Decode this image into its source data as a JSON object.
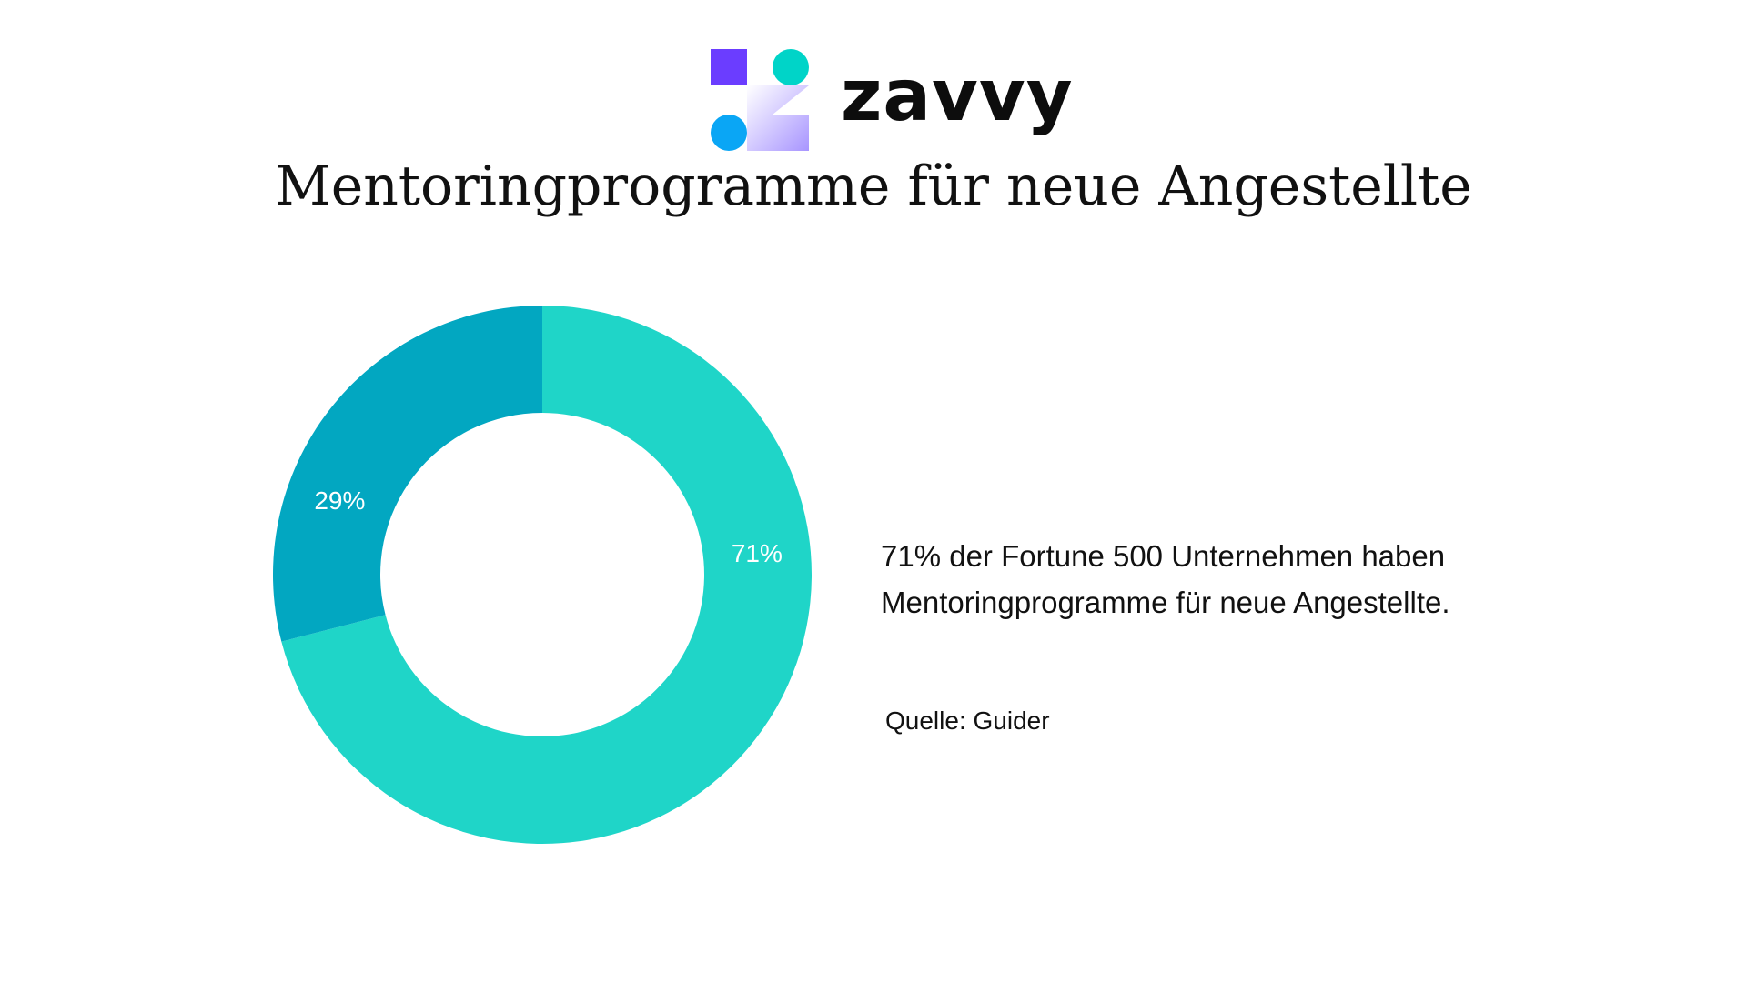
{
  "brand": {
    "name": "zavvy",
    "colors": {
      "purple": "#6b3dff",
      "teal": "#00d4c8",
      "blue": "#0aa6f5",
      "lavender": "#b7a4ff"
    }
  },
  "page": {
    "title": "Mentoringprogramme für neue Angestellte",
    "description": "71% der Fortune 500 Unternehmen haben Mentoringprogramme für neue Angestellte.",
    "source": "Quelle: Guider"
  },
  "chart_data": {
    "type": "pie",
    "donut": true,
    "title": "",
    "slices": [
      {
        "label": "71%",
        "value": 71,
        "color": "#1fd5c8"
      },
      {
        "label": "29%",
        "value": 29,
        "color": "#02a7c1"
      }
    ]
  }
}
